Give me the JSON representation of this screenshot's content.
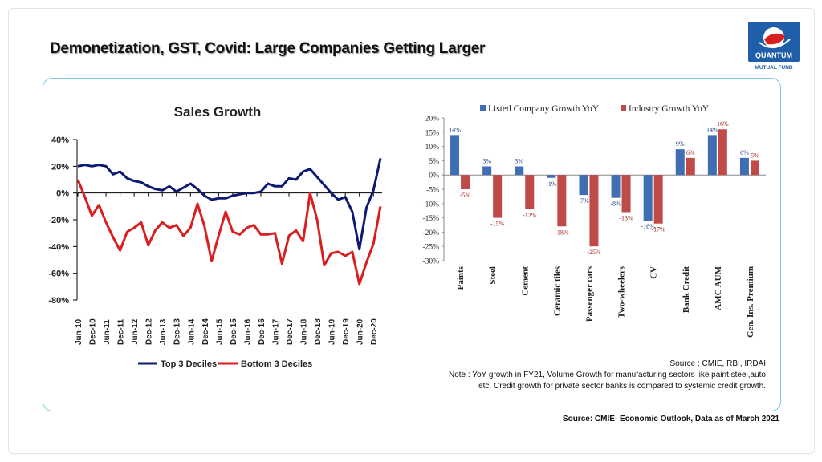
{
  "slide": {
    "title": "Demonetization, GST, Covid: Large Companies Getting Larger",
    "logo": {
      "line1": "QUANTUM",
      "line2": "MUTUAL FUND",
      "icon": "quantum-globe-logo",
      "color": "#1f5ea8"
    },
    "note_source": "Source : CMIE, RBI, IRDAI",
    "note_text": "Note : YoY growth in FY21, Volume Growth for manufacturing sectors like paint,steel,auto etc. Credit growth for private sector banks is compared to systemic credit growth.",
    "footer_source": "Source: CMIE- Economic Outlook, Data as of March 2021"
  },
  "chart_data": [
    {
      "type": "line",
      "title": "Sales Growth",
      "x": [
        "Jun-10",
        "Sep-10",
        "Dec-10",
        "Mar-11",
        "Jun-11",
        "Sep-11",
        "Dec-11",
        "Mar-12",
        "Jun-12",
        "Sep-12",
        "Dec-12",
        "Mar-13",
        "Jun-13",
        "Sep-13",
        "Dec-13",
        "Mar-14",
        "Jun-14",
        "Sep-14",
        "Dec-14",
        "Mar-15",
        "Jun-15",
        "Sep-15",
        "Dec-15",
        "Mar-16",
        "Jun-16",
        "Sep-16",
        "Dec-16",
        "Mar-17",
        "Jun-17",
        "Sep-17",
        "Dec-17",
        "Mar-18",
        "Jun-18",
        "Sep-18",
        "Dec-18",
        "Mar-19",
        "Jun-19",
        "Sep-19",
        "Dec-19",
        "Mar-20",
        "Jun-20",
        "Sep-20",
        "Dec-20",
        "Mar-21"
      ],
      "xticks": [
        "Jun-10",
        "Dec-10",
        "Jun-11",
        "Dec-11",
        "Jun-12",
        "Dec-12",
        "Jun-13",
        "Dec-13",
        "Jun-14",
        "Dec-14",
        "Jun-15",
        "Dec-15",
        "Jun-16",
        "Dec-16",
        "Jun-17",
        "Dec-17",
        "Jun-18",
        "Dec-18",
        "Jun-19",
        "Dec-19",
        "Jun-20",
        "Dec-20"
      ],
      "yticks": [
        "40%",
        "20%",
        "0%",
        "-20%",
        "-40%",
        "-60%",
        "-80%"
      ],
      "ylim": [
        -80,
        40
      ],
      "series": [
        {
          "name": "Top 3 Deciles",
          "color": "#0d1a72",
          "values": [
            20,
            21,
            20,
            21,
            20,
            14,
            16,
            11,
            9,
            8,
            5,
            3,
            2,
            5,
            1,
            4,
            7,
            3,
            -2,
            -5,
            -4,
            -4,
            -2,
            -1,
            0,
            0,
            1,
            7,
            5,
            5,
            11,
            10,
            16,
            18,
            12,
            6,
            0,
            -5,
            -3,
            -14,
            -42,
            -11,
            2,
            26
          ]
        },
        {
          "name": "Bottom 3 Deciles",
          "color": "#d81e1e",
          "values": [
            10,
            -3,
            -17,
            -9,
            -22,
            -33,
            -43,
            -29,
            -26,
            -22,
            -39,
            -28,
            -22,
            -26,
            -24,
            -32,
            -26,
            -8,
            -25,
            -51,
            -32,
            -14,
            -29,
            -31,
            -26,
            -24,
            -31,
            -31,
            -30,
            -53,
            -32,
            -28,
            -36,
            0,
            -20,
            -54,
            -45,
            -44,
            -47,
            -44,
            -68,
            -52,
            -38,
            -10
          ]
        }
      ],
      "legend": "bottom",
      "grid": false
    },
    {
      "type": "bar",
      "categories": [
        "Paints",
        "Steel",
        "Cement",
        "Ceramic tiles",
        "Passenger cars",
        "Two-wheelers",
        "CV",
        "Bank Credit",
        "AMC AUM",
        "Gen. Ins. Premium"
      ],
      "yticks": [
        "20%",
        "15%",
        "10%",
        "5%",
        "0%",
        "-5%",
        "-10%",
        "-15%",
        "-20%",
        "-25%",
        "-30%"
      ],
      "ylim": [
        -30,
        20
      ],
      "series": [
        {
          "name": "Listed Company Growth YoY",
          "color": "#3f6fb2",
          "values": [
            14,
            3,
            3,
            -1,
            -7,
            -8,
            -16,
            9,
            14,
            6
          ],
          "labels": [
            "14%",
            "3%",
            "3%",
            "-1%",
            "-7%",
            "-8%",
            "-16%",
            "9%",
            "14%",
            "6%"
          ]
        },
        {
          "name": "Industry Growth YoY",
          "color": "#bf4a47",
          "values": [
            -5,
            -15,
            -12,
            -18,
            -25,
            -13,
            -17,
            6,
            16,
            5
          ],
          "labels": [
            "-5%",
            "-15%",
            "-12%",
            "-18%",
            "-25%",
            "-13%",
            "-17%",
            "6%",
            "16%",
            "5%"
          ]
        }
      ],
      "legend": "top",
      "grid": false
    }
  ]
}
